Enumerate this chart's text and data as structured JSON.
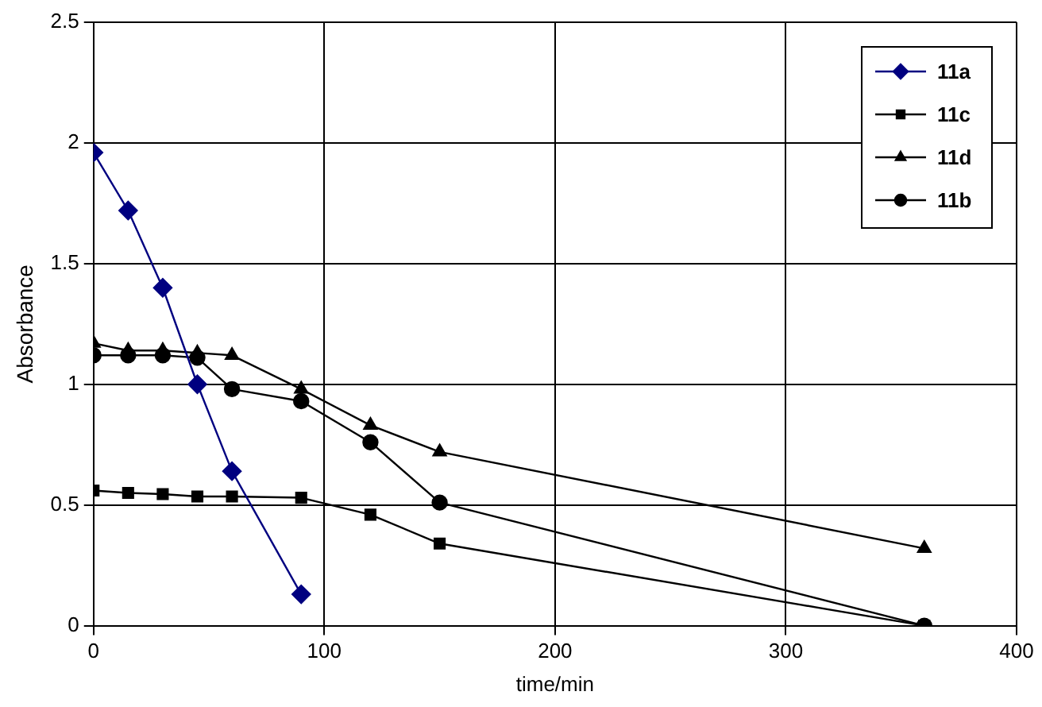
{
  "chart_data": {
    "type": "line",
    "xlabel": "time/min",
    "ylabel": "Absorbance",
    "xlim": [
      0,
      400
    ],
    "xticks": [
      0,
      100,
      200,
      300,
      400
    ],
    "ylim": [
      0,
      2.5
    ],
    "yticks": [
      0,
      0.5,
      1,
      1.5,
      2,
      2.5
    ],
    "grid": true,
    "legend": "top right",
    "line_style": "solid",
    "series": [
      {
        "name": "11a",
        "color": "#000080",
        "marker": "diamond",
        "x": [
          0,
          15,
          30,
          45,
          60,
          90
        ],
        "values": [
          1.96,
          1.72,
          1.4,
          1.0,
          0.64,
          0.13
        ]
      },
      {
        "name": "11c",
        "color": "#000000",
        "marker": "square",
        "x": [
          0,
          15,
          30,
          45,
          60,
          90,
          120,
          150,
          360
        ],
        "values": [
          0.56,
          0.55,
          0.545,
          0.535,
          0.535,
          0.53,
          0.46,
          0.34,
          0
        ]
      },
      {
        "name": "11d",
        "color": "#000000",
        "marker": "triangle",
        "x": [
          0,
          15,
          30,
          45,
          60,
          90,
          120,
          150,
          360
        ],
        "values": [
          1.17,
          1.14,
          1.14,
          1.13,
          1.12,
          0.98,
          0.83,
          0.72,
          0.32
        ]
      },
      {
        "name": "11b",
        "color": "#000000",
        "marker": "circle",
        "x": [
          0,
          15,
          30,
          45,
          60,
          90,
          120,
          150,
          360
        ],
        "values": [
          1.12,
          1.12,
          1.12,
          1.11,
          0.98,
          0.93,
          0.76,
          0.51,
          0
        ]
      }
    ]
  }
}
